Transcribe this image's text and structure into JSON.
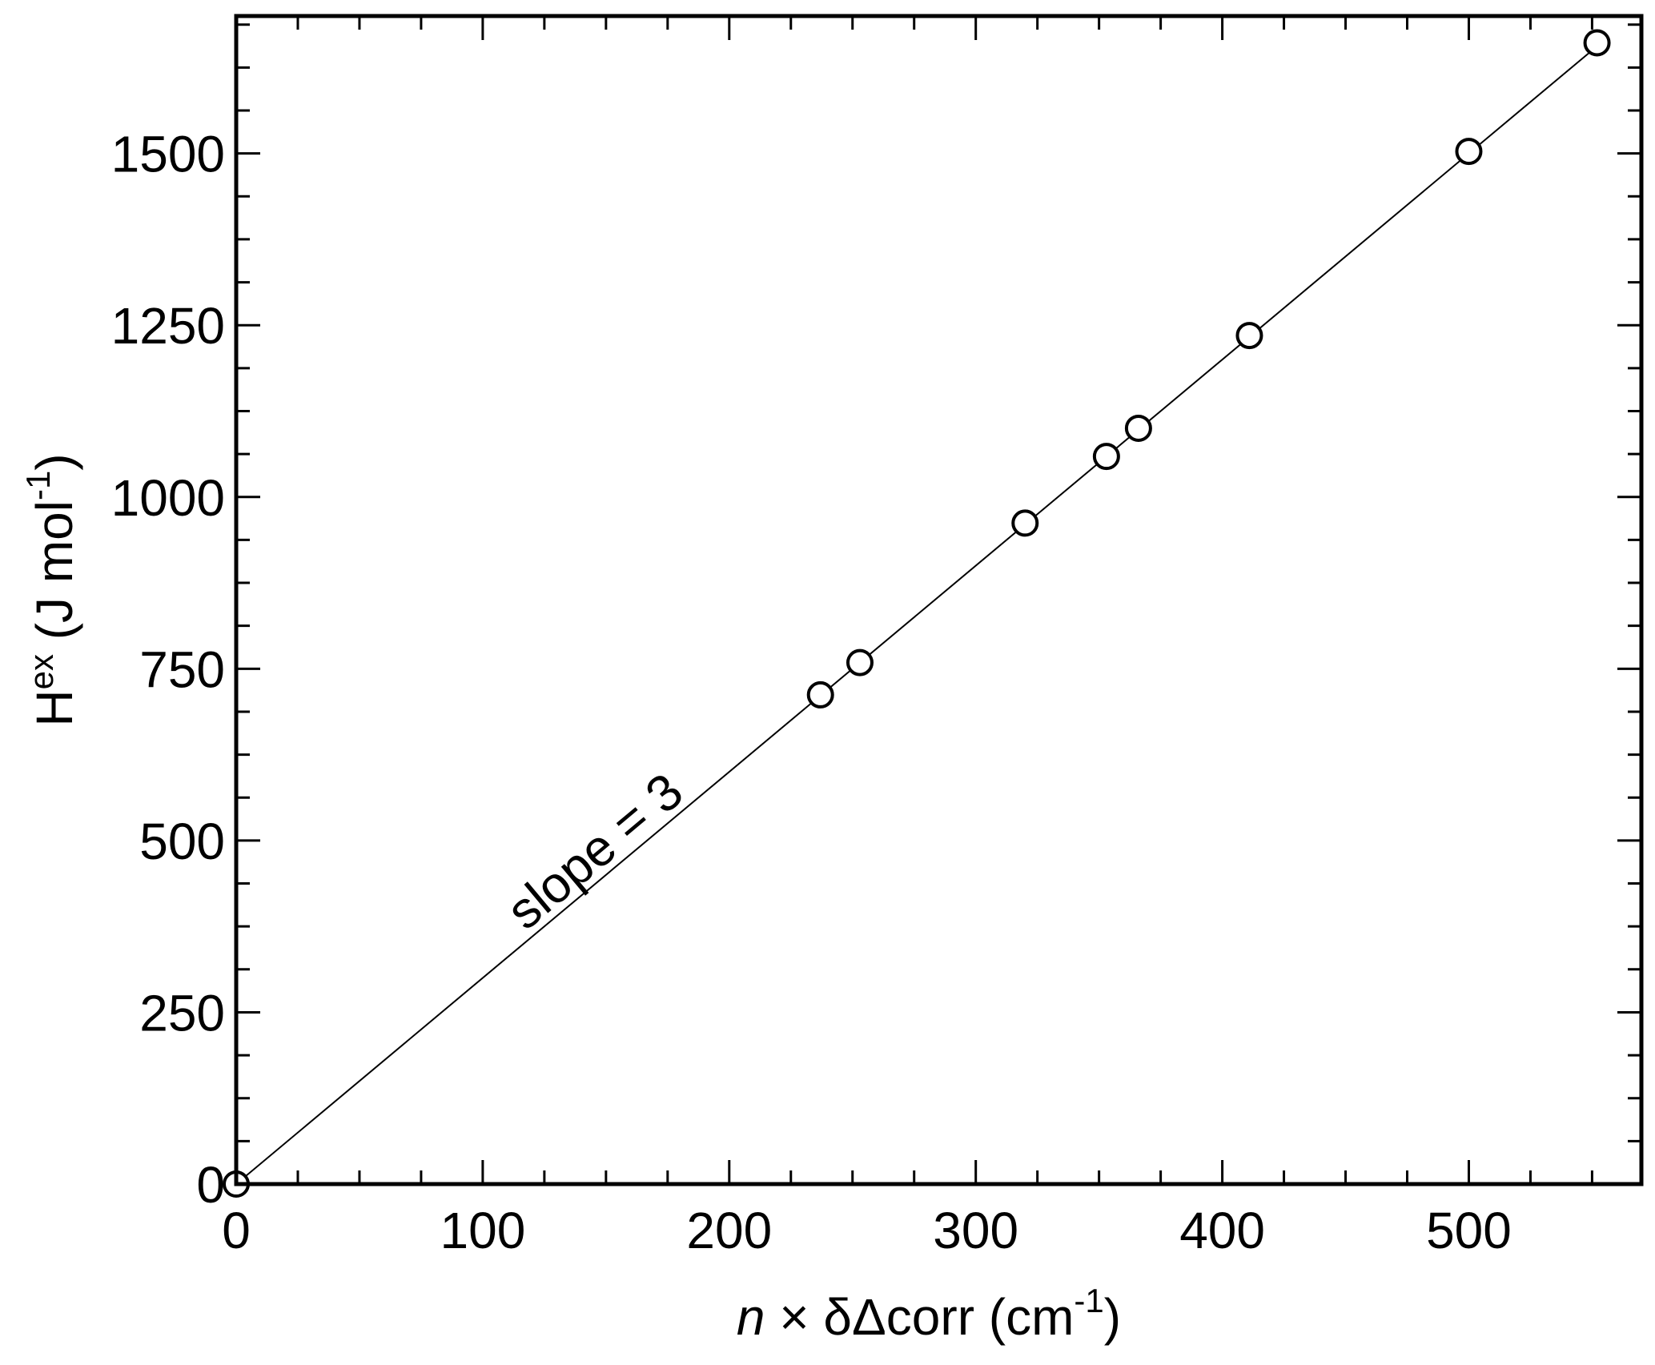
{
  "chart_data": {
    "type": "scatter",
    "xlim": [
      0,
      570
    ],
    "ylim": [
      0,
      1700
    ],
    "xticks": [
      0,
      100,
      200,
      300,
      400,
      500
    ],
    "xtick_labels": [
      "0",
      "100",
      "200",
      "300",
      "400",
      "500"
    ],
    "x_minor_step": 25,
    "yticks": [
      0,
      250,
      500,
      750,
      1000,
      1250,
      1500
    ],
    "ytick_labels": [
      "0",
      "250",
      "500",
      "750",
      "1000",
      "1250",
      "1500"
    ],
    "y_minor_step": 62.5,
    "grid": false,
    "ticks_on_all_sides": true,
    "xlabel": {
      "italic_part": "n",
      "text": " × δΔcorr (cm",
      "sup": "-1",
      "close": ")"
    },
    "ylabel": {
      "main": "H",
      "sup": "ex",
      "text": " (J mol",
      "sup2": "-1",
      "close": ")"
    },
    "series": [
      {
        "marker": "open-circle",
        "x": [
          0,
          237,
          253,
          320,
          353,
          366,
          411,
          500,
          552
        ],
        "y": [
          0,
          712,
          759,
          962,
          1059,
          1100,
          1235,
          1503,
          1661
        ]
      }
    ],
    "fit_line": {
      "slope": 3,
      "intercept": 0,
      "x_range": [
        0,
        556
      ]
    },
    "annotation": {
      "text": "slope = 3",
      "x": 150,
      "y": 465
    }
  }
}
